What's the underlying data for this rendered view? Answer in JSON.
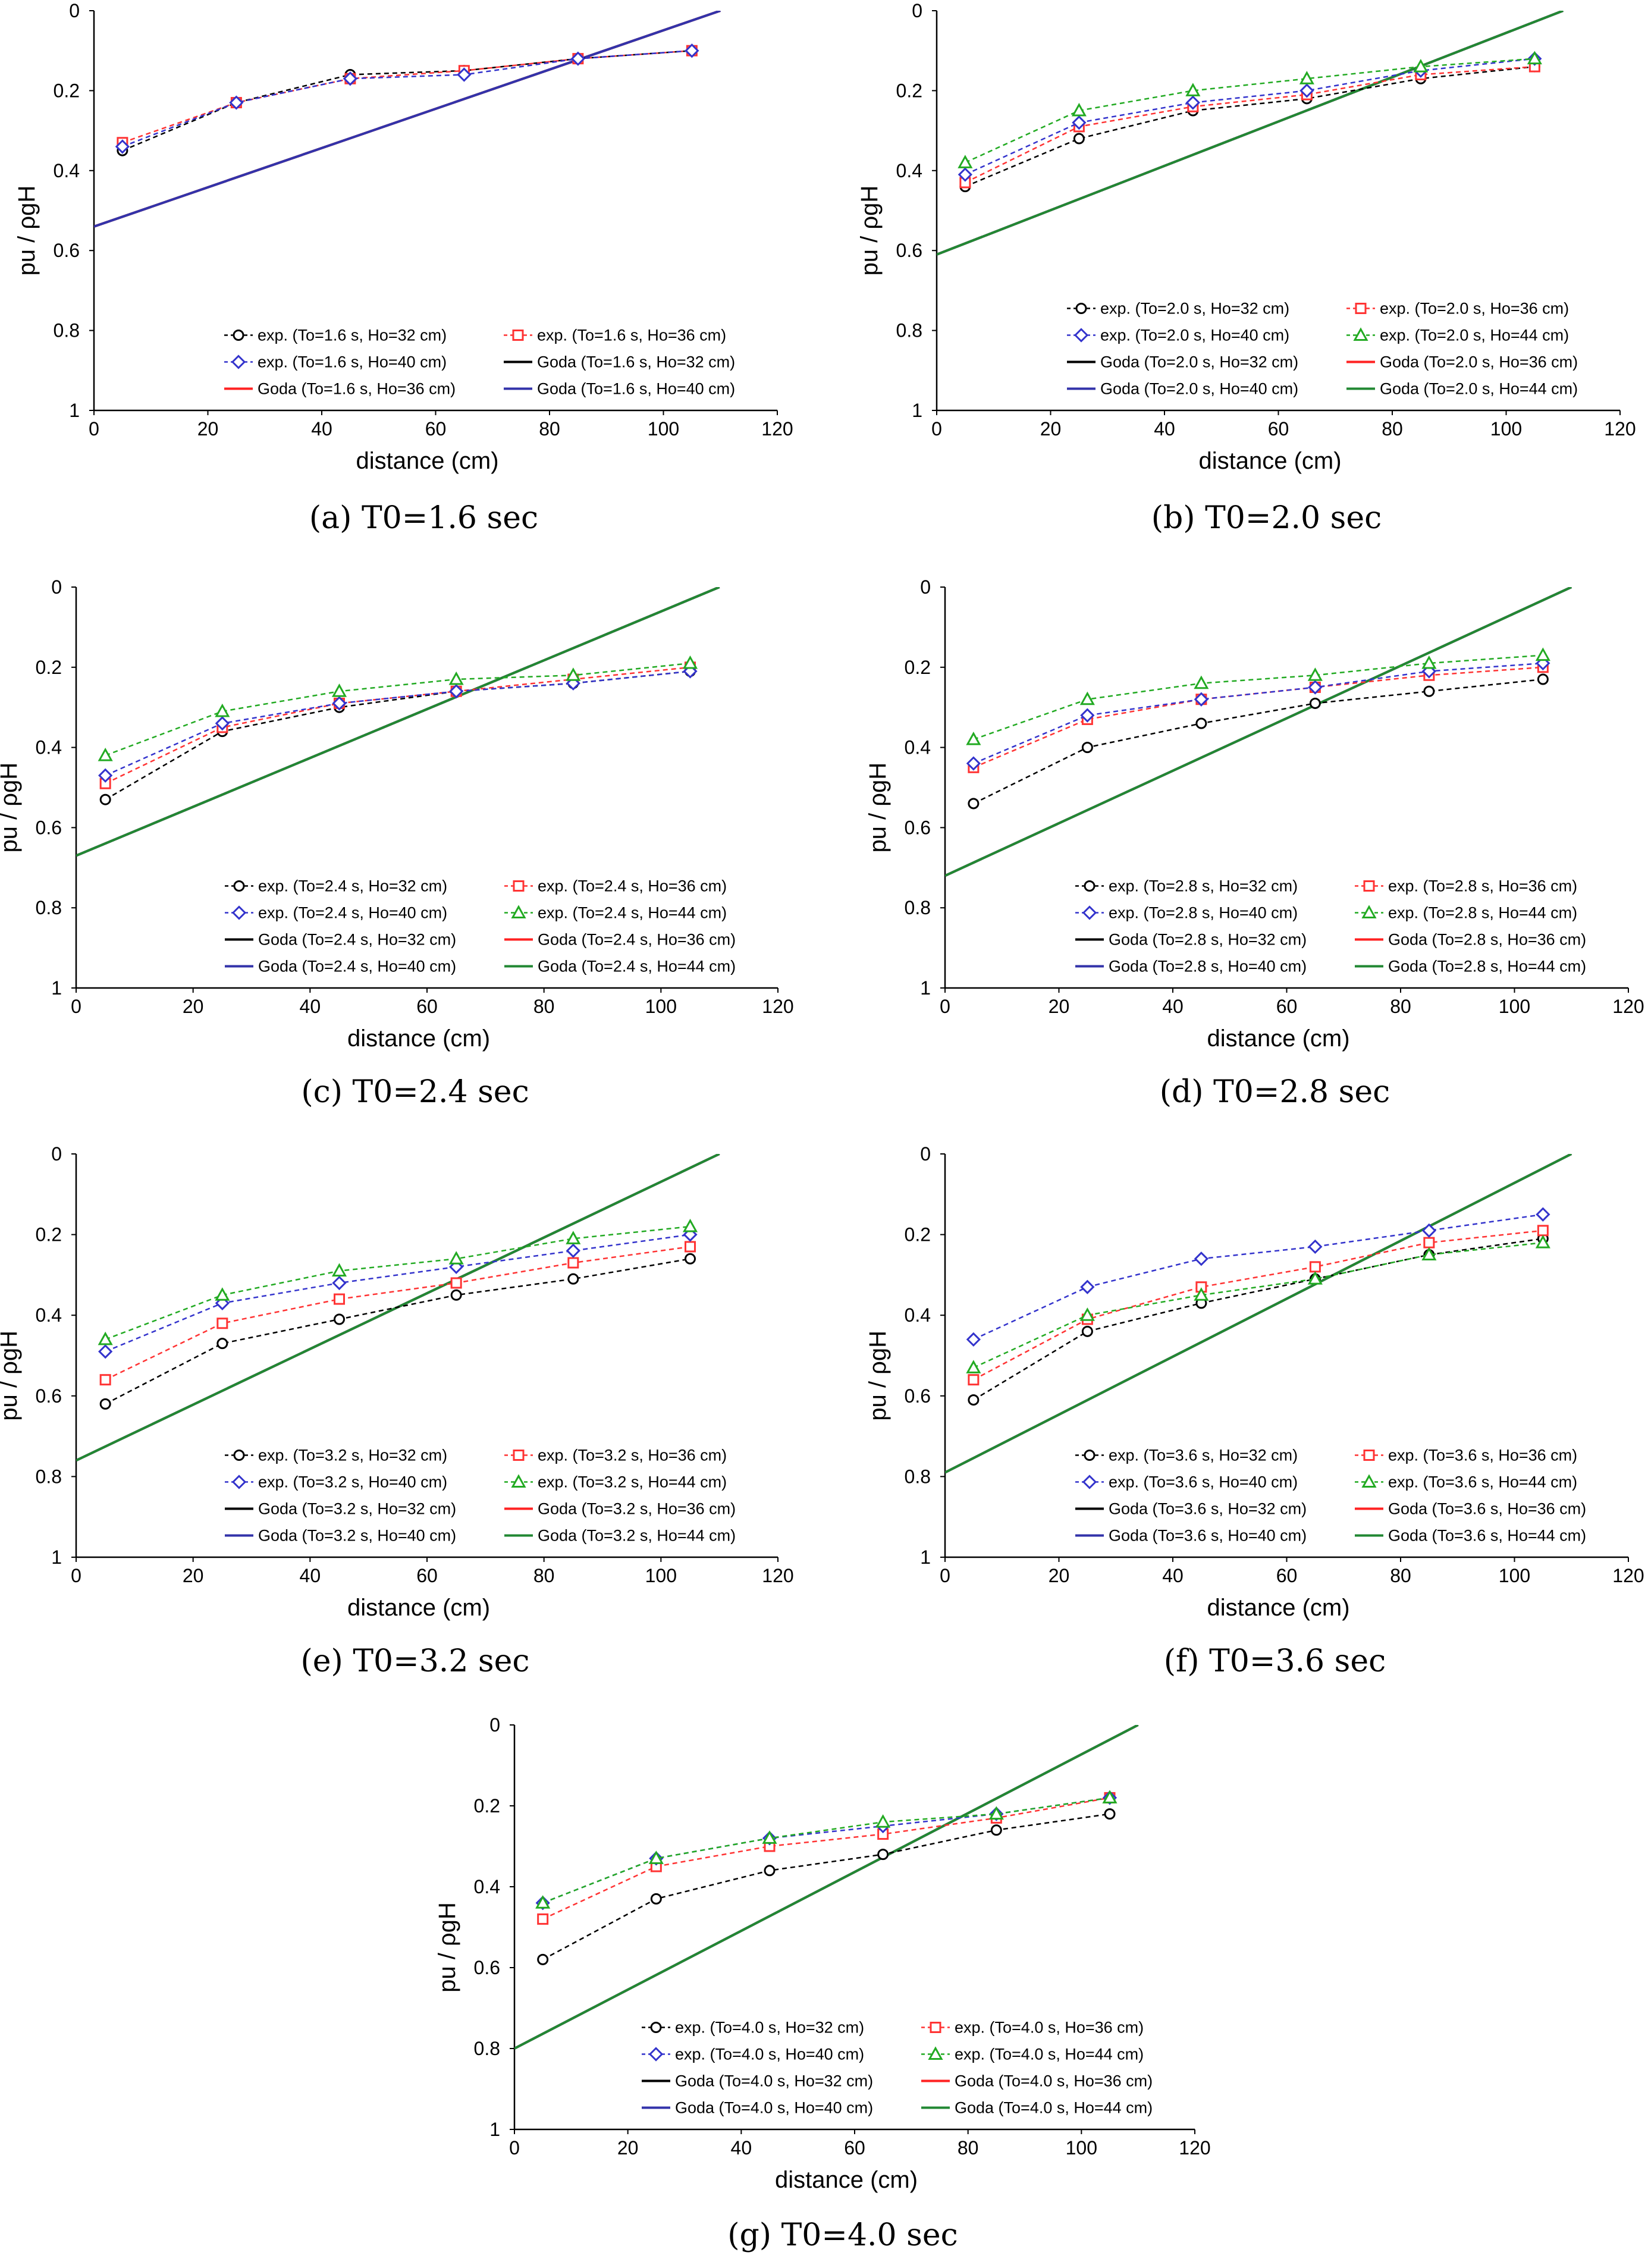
{
  "colors": {
    "exp32": "#000000",
    "exp36": "#ff3333",
    "exp40": "#3333cc",
    "exp44": "#22aa22",
    "goda32": "#000000",
    "goda36": "#ff2222",
    "goda40": "#3333aa",
    "goda44": "#228833"
  },
  "chart_data": [
    {
      "type": "line",
      "caption": "(a) T0=1.6 sec",
      "xlabel": "distance (cm)",
      "ylabel": "pu / ρgH",
      "xlim": [
        0,
        120
      ],
      "ylim": [
        0,
        1
      ],
      "y_inverted": true,
      "xticks": [
        0,
        20,
        40,
        60,
        80,
        100,
        120
      ],
      "yticks": [
        0,
        0.2,
        0.4,
        0.6,
        0.8,
        1
      ],
      "grid": false,
      "legend_position": "bottom-right",
      "x": [
        5,
        25,
        45,
        65,
        85,
        105
      ],
      "series": [
        {
          "name": "exp.  (To=1.6 s, Ho=32 cm)",
          "kind": "exp",
          "color_key": "exp32",
          "marker": "circle",
          "values": [
            0.35,
            0.23,
            0.16,
            0.15,
            0.12,
            0.1
          ]
        },
        {
          "name": "exp.  (To=1.6 s, Ho=36 cm)",
          "kind": "exp",
          "color_key": "exp36",
          "marker": "square",
          "values": [
            0.33,
            0.23,
            0.17,
            0.15,
            0.12,
            0.1
          ]
        },
        {
          "name": "exp.  (To=1.6 s, Ho=40 cm)",
          "kind": "exp",
          "color_key": "exp40",
          "marker": "diamond",
          "values": [
            0.34,
            0.23,
            0.17,
            0.16,
            0.12,
            0.1
          ]
        },
        {
          "name": "Goda (To=1.6 s, Ho=32 cm)",
          "kind": "goda",
          "color_key": "goda32",
          "x": [
            0,
            110
          ],
          "values": [
            0.54,
            0.0
          ]
        },
        {
          "name": "Goda (To=1.6 s, Ho=36 cm)",
          "kind": "goda",
          "color_key": "goda36",
          "x": [
            0,
            110
          ],
          "values": [
            0.54,
            0.0
          ]
        },
        {
          "name": "Goda (To=1.6 s, Ho=40 cm)",
          "kind": "goda",
          "color_key": "goda40",
          "x": [
            0,
            110
          ],
          "values": [
            0.54,
            0.0
          ]
        }
      ]
    },
    {
      "type": "line",
      "caption": "(b) T0=2.0 sec",
      "xlabel": "distance (cm)",
      "ylabel": "pu / ρgH",
      "xlim": [
        0,
        120
      ],
      "ylim": [
        0,
        1
      ],
      "y_inverted": true,
      "xticks": [
        0,
        20,
        40,
        60,
        80,
        100,
        120
      ],
      "yticks": [
        0,
        0.2,
        0.4,
        0.6,
        0.8,
        1
      ],
      "grid": false,
      "legend_position": "bottom-right",
      "x": [
        5,
        25,
        45,
        65,
        85,
        105
      ],
      "series": [
        {
          "name": "exp.  (To=2.0 s, Ho=32 cm)",
          "kind": "exp",
          "color_key": "exp32",
          "marker": "circle",
          "values": [
            0.44,
            0.32,
            0.25,
            0.22,
            0.17,
            0.14
          ]
        },
        {
          "name": "exp.  (To=2.0 s, Ho=36 cm)",
          "kind": "exp",
          "color_key": "exp36",
          "marker": "square",
          "values": [
            0.43,
            0.29,
            0.24,
            0.21,
            0.16,
            0.14
          ]
        },
        {
          "name": "exp.  (To=2.0 s, Ho=40 cm)",
          "kind": "exp",
          "color_key": "exp40",
          "marker": "diamond",
          "values": [
            0.41,
            0.28,
            0.23,
            0.2,
            0.15,
            0.12
          ]
        },
        {
          "name": "exp.  (To=2.0 s, Ho=44 cm)",
          "kind": "exp",
          "color_key": "exp44",
          "marker": "triangle",
          "values": [
            0.38,
            0.25,
            0.2,
            0.17,
            0.14,
            0.12
          ]
        },
        {
          "name": "Goda (To=2.0 s, Ho=32 cm)",
          "kind": "goda",
          "color_key": "goda32",
          "x": [
            0,
            110
          ],
          "values": [
            0.61,
            0.0
          ]
        },
        {
          "name": "Goda (To=2.0 s, Ho=36 cm)",
          "kind": "goda",
          "color_key": "goda36",
          "x": [
            0,
            110
          ],
          "values": [
            0.61,
            0.0
          ]
        },
        {
          "name": "Goda (To=2.0 s, Ho=40 cm)",
          "kind": "goda",
          "color_key": "goda40",
          "x": [
            0,
            110
          ],
          "values": [
            0.61,
            0.0
          ]
        },
        {
          "name": "Goda (To=2.0 s, Ho=44 cm)",
          "kind": "goda",
          "color_key": "goda44",
          "x": [
            0,
            110
          ],
          "values": [
            0.61,
            0.0
          ]
        }
      ]
    },
    {
      "type": "line",
      "caption": "(c) T0=2.4 sec",
      "xlabel": "distance (cm)",
      "ylabel": "pu / ρgH",
      "xlim": [
        0,
        120
      ],
      "ylim": [
        0,
        1
      ],
      "y_inverted": true,
      "xticks": [
        0,
        20,
        40,
        60,
        80,
        100,
        120
      ],
      "yticks": [
        0,
        0.2,
        0.4,
        0.6,
        0.8,
        1
      ],
      "grid": false,
      "legend_position": "bottom-right",
      "x": [
        5,
        25,
        45,
        65,
        85,
        105
      ],
      "series": [
        {
          "name": "exp.  (To=2.4 s, Ho=32 cm)",
          "kind": "exp",
          "color_key": "exp32",
          "marker": "circle",
          "values": [
            0.53,
            0.36,
            0.3,
            0.26,
            0.24,
            0.21
          ]
        },
        {
          "name": "exp.  (To=2.4 s, Ho=36 cm)",
          "kind": "exp",
          "color_key": "exp36",
          "marker": "square",
          "values": [
            0.49,
            0.35,
            0.29,
            0.26,
            0.23,
            0.2
          ]
        },
        {
          "name": "exp.  (To=2.4 s, Ho=40 cm)",
          "kind": "exp",
          "color_key": "exp40",
          "marker": "diamond",
          "values": [
            0.47,
            0.34,
            0.29,
            0.26,
            0.24,
            0.21
          ]
        },
        {
          "name": "exp.  (To=2.4 s, Ho=44 cm)",
          "kind": "exp",
          "color_key": "exp44",
          "marker": "triangle",
          "values": [
            0.42,
            0.31,
            0.26,
            0.23,
            0.22,
            0.19
          ]
        },
        {
          "name": "Goda (To=2.4 s, Ho=32 cm)",
          "kind": "goda",
          "color_key": "goda32",
          "x": [
            0,
            110
          ],
          "values": [
            0.67,
            0.0
          ]
        },
        {
          "name": "Goda (To=2.4 s, Ho=36 cm)",
          "kind": "goda",
          "color_key": "goda36",
          "x": [
            0,
            110
          ],
          "values": [
            0.67,
            0.0
          ]
        },
        {
          "name": "Goda (To=2.4 s, Ho=40 cm)",
          "kind": "goda",
          "color_key": "goda40",
          "x": [
            0,
            110
          ],
          "values": [
            0.67,
            0.0
          ]
        },
        {
          "name": "Goda (To=2.4 s, Ho=44 cm)",
          "kind": "goda",
          "color_key": "goda44",
          "x": [
            0,
            110
          ],
          "values": [
            0.67,
            0.0
          ]
        }
      ]
    },
    {
      "type": "line",
      "caption": "(d) T0=2.8 sec",
      "xlabel": "distance (cm)",
      "ylabel": "pu / ρgH",
      "xlim": [
        0,
        120
      ],
      "ylim": [
        0,
        1
      ],
      "y_inverted": true,
      "xticks": [
        0,
        20,
        40,
        60,
        80,
        100,
        120
      ],
      "yticks": [
        0,
        0.2,
        0.4,
        0.6,
        0.8,
        1
      ],
      "grid": false,
      "legend_position": "bottom-right",
      "x": [
        5,
        25,
        45,
        65,
        85,
        105
      ],
      "series": [
        {
          "name": "exp.  (To=2.8 s, Ho=32 cm)",
          "kind": "exp",
          "color_key": "exp32",
          "marker": "circle",
          "values": [
            0.54,
            0.4,
            0.34,
            0.29,
            0.26,
            0.23
          ]
        },
        {
          "name": "exp.  (To=2.8 s, Ho=36 cm)",
          "kind": "exp",
          "color_key": "exp36",
          "marker": "square",
          "values": [
            0.45,
            0.33,
            0.28,
            0.25,
            0.22,
            0.2
          ]
        },
        {
          "name": "exp.  (To=2.8 s, Ho=40 cm)",
          "kind": "exp",
          "color_key": "exp40",
          "marker": "diamond",
          "values": [
            0.44,
            0.32,
            0.28,
            0.25,
            0.21,
            0.19
          ]
        },
        {
          "name": "exp.  (To=2.8 s, Ho=44 cm)",
          "kind": "exp",
          "color_key": "exp44",
          "marker": "triangle",
          "values": [
            0.38,
            0.28,
            0.24,
            0.22,
            0.19,
            0.17
          ]
        },
        {
          "name": "Goda (To=2.8 s, Ho=32 cm)",
          "kind": "goda",
          "color_key": "goda32",
          "x": [
            0,
            110
          ],
          "values": [
            0.72,
            0.0
          ]
        },
        {
          "name": "Goda (To=2.8 s, Ho=36 cm)",
          "kind": "goda",
          "color_key": "goda36",
          "x": [
            0,
            110
          ],
          "values": [
            0.72,
            0.0
          ]
        },
        {
          "name": "Goda (To=2.8 s, Ho=40 cm)",
          "kind": "goda",
          "color_key": "goda40",
          "x": [
            0,
            110
          ],
          "values": [
            0.72,
            0.0
          ]
        },
        {
          "name": "Goda (To=2.8 s, Ho=44 cm)",
          "kind": "goda",
          "color_key": "goda44",
          "x": [
            0,
            110
          ],
          "values": [
            0.72,
            0.0
          ]
        }
      ]
    },
    {
      "type": "line",
      "caption": "(e) T0=3.2 sec",
      "xlabel": "distance (cm)",
      "ylabel": "pu / ρgH",
      "xlim": [
        0,
        120
      ],
      "ylim": [
        0,
        1
      ],
      "y_inverted": true,
      "xticks": [
        0,
        20,
        40,
        60,
        80,
        100,
        120
      ],
      "yticks": [
        0,
        0.2,
        0.4,
        0.6,
        0.8,
        1
      ],
      "grid": false,
      "legend_position": "bottom-right",
      "x": [
        5,
        25,
        45,
        65,
        85,
        105
      ],
      "series": [
        {
          "name": "exp.  (To=3.2 s, Ho=32 cm)",
          "kind": "exp",
          "color_key": "exp32",
          "marker": "circle",
          "values": [
            0.62,
            0.47,
            0.41,
            0.35,
            0.31,
            0.26
          ]
        },
        {
          "name": "exp.  (To=3.2 s, Ho=36 cm)",
          "kind": "exp",
          "color_key": "exp36",
          "marker": "square",
          "values": [
            0.56,
            0.42,
            0.36,
            0.32,
            0.27,
            0.23
          ]
        },
        {
          "name": "exp.  (To=3.2 s, Ho=40 cm)",
          "kind": "exp",
          "color_key": "exp40",
          "marker": "diamond",
          "values": [
            0.49,
            0.37,
            0.32,
            0.28,
            0.24,
            0.2
          ]
        },
        {
          "name": "exp.  (To=3.2 s, Ho=44 cm)",
          "kind": "exp",
          "color_key": "exp44",
          "marker": "triangle",
          "values": [
            0.46,
            0.35,
            0.29,
            0.26,
            0.21,
            0.18
          ]
        },
        {
          "name": "Goda (To=3.2 s, Ho=32 cm)",
          "kind": "goda",
          "color_key": "goda32",
          "x": [
            0,
            110
          ],
          "values": [
            0.76,
            0.0
          ]
        },
        {
          "name": "Goda (To=3.2 s, Ho=36 cm)",
          "kind": "goda",
          "color_key": "goda36",
          "x": [
            0,
            110
          ],
          "values": [
            0.76,
            0.0
          ]
        },
        {
          "name": "Goda (To=3.2 s, Ho=40 cm)",
          "kind": "goda",
          "color_key": "goda40",
          "x": [
            0,
            110
          ],
          "values": [
            0.76,
            0.0
          ]
        },
        {
          "name": "Goda (To=3.2 s, Ho=44 cm)",
          "kind": "goda",
          "color_key": "goda44",
          "x": [
            0,
            110
          ],
          "values": [
            0.76,
            0.0
          ]
        }
      ]
    },
    {
      "type": "line",
      "caption": "(f) T0=3.6 sec",
      "xlabel": "distance (cm)",
      "ylabel": "pu / ρgH",
      "xlim": [
        0,
        120
      ],
      "ylim": [
        0,
        1
      ],
      "y_inverted": true,
      "xticks": [
        0,
        20,
        40,
        60,
        80,
        100,
        120
      ],
      "yticks": [
        0,
        0.2,
        0.4,
        0.6,
        0.8,
        1
      ],
      "grid": false,
      "legend_position": "bottom-right",
      "x": [
        5,
        25,
        45,
        65,
        85,
        105
      ],
      "series": [
        {
          "name": "exp.  (To=3.6 s, Ho=32 cm)",
          "kind": "exp",
          "color_key": "exp32",
          "marker": "circle",
          "values": [
            0.61,
            0.44,
            0.37,
            0.31,
            0.25,
            0.21
          ]
        },
        {
          "name": "exp.  (To=3.6 s, Ho=36 cm)",
          "kind": "exp",
          "color_key": "exp36",
          "marker": "square",
          "values": [
            0.56,
            0.41,
            0.33,
            0.28,
            0.22,
            0.19
          ]
        },
        {
          "name": "exp.  (To=3.6 s, Ho=40 cm)",
          "kind": "exp",
          "color_key": "exp40",
          "marker": "diamond",
          "values": [
            0.46,
            0.33,
            0.26,
            0.23,
            0.19,
            0.15
          ]
        },
        {
          "name": "exp.  (To=3.6 s, Ho=44 cm)",
          "kind": "exp",
          "color_key": "exp44",
          "marker": "triangle",
          "values": [
            0.53,
            0.4,
            0.35,
            0.31,
            0.25,
            0.22
          ]
        },
        {
          "name": "Goda (To=3.6 s, Ho=32 cm)",
          "kind": "goda",
          "color_key": "goda32",
          "x": [
            0,
            110
          ],
          "values": [
            0.79,
            0.0
          ]
        },
        {
          "name": "Goda (To=3.6 s, Ho=36 cm)",
          "kind": "goda",
          "color_key": "goda36",
          "x": [
            0,
            110
          ],
          "values": [
            0.79,
            0.0
          ]
        },
        {
          "name": "Goda (To=3.6 s, Ho=40 cm)",
          "kind": "goda",
          "color_key": "goda40",
          "x": [
            0,
            110
          ],
          "values": [
            0.79,
            0.0
          ]
        },
        {
          "name": "Goda (To=3.6 s, Ho=44 cm)",
          "kind": "goda",
          "color_key": "goda44",
          "x": [
            0,
            110
          ],
          "values": [
            0.79,
            0.0
          ]
        }
      ]
    },
    {
      "type": "line",
      "caption": "(g) T0=4.0 sec",
      "xlabel": "distance (cm)",
      "ylabel": "pu / ρgH",
      "xlim": [
        0,
        120
      ],
      "ylim": [
        0,
        1
      ],
      "y_inverted": true,
      "xticks": [
        0,
        20,
        40,
        60,
        80,
        100,
        120
      ],
      "yticks": [
        0,
        0.2,
        0.4,
        0.6,
        0.8,
        1
      ],
      "grid": false,
      "legend_position": "bottom-right",
      "x": [
        5,
        25,
        45,
        65,
        85,
        105
      ],
      "series": [
        {
          "name": "exp.  (To=4.0 s, Ho=32 cm)",
          "kind": "exp",
          "color_key": "exp32",
          "marker": "circle",
          "values": [
            0.58,
            0.43,
            0.36,
            0.32,
            0.26,
            0.22
          ]
        },
        {
          "name": "exp.  (To=4.0 s, Ho=36 cm)",
          "kind": "exp",
          "color_key": "exp36",
          "marker": "square",
          "values": [
            0.48,
            0.35,
            0.3,
            0.27,
            0.23,
            0.18
          ]
        },
        {
          "name": "exp.  (To=4.0 s, Ho=40 cm)",
          "kind": "exp",
          "color_key": "exp40",
          "marker": "diamond",
          "values": [
            0.44,
            0.33,
            0.28,
            0.25,
            0.22,
            0.18
          ]
        },
        {
          "name": "exp.  (To=4.0 s, Ho=44 cm)",
          "kind": "exp",
          "color_key": "exp44",
          "marker": "triangle",
          "values": [
            0.44,
            0.33,
            0.28,
            0.24,
            0.22,
            0.18
          ]
        },
        {
          "name": "Goda (To=4.0 s, Ho=32 cm)",
          "kind": "goda",
          "color_key": "goda32",
          "x": [
            0,
            110
          ],
          "values": [
            0.8,
            0.0
          ]
        },
        {
          "name": "Goda (To=4.0 s, Ho=36 cm)",
          "kind": "goda",
          "color_key": "goda36",
          "x": [
            0,
            110
          ],
          "values": [
            0.8,
            0.0
          ]
        },
        {
          "name": "Goda (To=4.0 s, Ho=40 cm)",
          "kind": "goda",
          "color_key": "goda40",
          "x": [
            0,
            110
          ],
          "values": [
            0.8,
            0.0
          ]
        },
        {
          "name": "Goda (To=4.0 s, Ho=44 cm)",
          "kind": "goda",
          "color_key": "goda44",
          "x": [
            0,
            110
          ],
          "values": [
            0.8,
            0.0
          ]
        }
      ]
    }
  ]
}
